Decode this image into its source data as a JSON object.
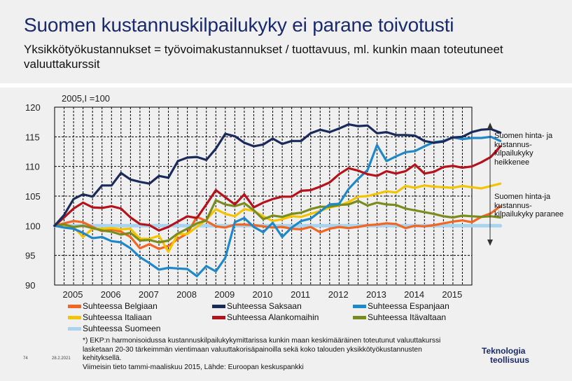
{
  "slide": {
    "title": "Suomen kustannuskilpailukyky ei parane toivotusti",
    "subtitle": "Yksikkötyökustannukset = työvoimakustannukset / tuottavuus, ml. kunkin maan toteutuneet valuuttakurssit",
    "index_label": "2005,I =100",
    "note_up": "Suomen hinta- ja kustannus-kilpailukyky heikkenee",
    "note_down": "Suomen hinta-ja kustannus-kilpailukyky paranee",
    "footnote": [
      "*) EKP:n harmonisoidussa kustannuskilpailukykymittarissa kunkin maan keskimääräinen toteutunut valuuttakurssi",
      "lasketaan 20-30 tärkeimmän vientimaan valuuttakorisäpainoilla sekä koko talouden yksikkötyökustannusten",
      "kehityksellä.",
      "Viimeisin tieto tammi-maaliskuu 2015, Lähde: Euroopan keskuspankki"
    ],
    "page_number": "74",
    "date": "28.2.2021",
    "logo_line1": "Teknologia",
    "logo_line2": "teollisuus"
  },
  "colors": {
    "Belgium": "#f26522",
    "Germany": "#1a2a5a",
    "Spain": "#1f88c8",
    "Italy": "#f5c400",
    "Netherlands": "#b5121b",
    "Austria": "#7a8c1e",
    "Finland": "#a8d4f0"
  },
  "chart_data": {
    "type": "line",
    "title": "Suomen kustannuskilpailukyky ei parane toivotusti",
    "ylabel": "2005,I =100",
    "xlabel": "",
    "ylim": [
      90,
      120
    ],
    "yticks": [
      90,
      95,
      100,
      105,
      110,
      115,
      120
    ],
    "xlim": [
      2005.0,
      2016.0
    ],
    "xticks": [
      "2005",
      "2006",
      "2007",
      "2008",
      "2009",
      "2010",
      "2011",
      "2012",
      "2013",
      "2014",
      "2015"
    ],
    "start": 2005.0,
    "step": 0.25,
    "series": [
      {
        "name": "Suhteessa Belgiaan",
        "key": "Belgium",
        "values": [
          100,
          100.4,
          100.8,
          100.6,
          99.8,
          99.1,
          99.4,
          99.0,
          98.1,
          96.2,
          96.9,
          96.1,
          96.6,
          97.8,
          98.7,
          101.5,
          100.8,
          99.9,
          99.7,
          100.2,
          100.2,
          100.1,
          99.9,
          99.7,
          99.8,
          99.5,
          99.4,
          99.8,
          98.9,
          99.5,
          99.8,
          99.6,
          99.8,
          100.1,
          100.2,
          100.4,
          100.3,
          99.6,
          100.0,
          99.9,
          100.1,
          100.4,
          100.7,
          100.9,
          100.6,
          101.5,
          102.1,
          103.3
        ]
      },
      {
        "name": "Suhteessa Italiaan",
        "key": "Italy",
        "values": [
          100,
          99.9,
          99.8,
          98.1,
          99.5,
          99.5,
          99.6,
          99.4,
          99.5,
          97.8,
          97.8,
          98.3,
          95.6,
          98.6,
          98.6,
          99.8,
          101.0,
          102.8,
          102.0,
          101.6,
          102.8,
          102.5,
          101.6,
          100.8,
          101.1,
          101.6,
          101.5,
          102.0,
          102.5,
          103.1,
          103.4,
          104.0,
          104.9,
          105.0,
          105.4,
          105.8,
          105.6,
          106.7,
          106.4,
          106.8,
          106.6,
          106.5,
          106.4,
          106.7,
          106.5,
          106.3,
          106.7,
          107.1
        ]
      },
      {
        "name": "Suhteessa Suomeen",
        "key": "Finland",
        "values": [
          100,
          100,
          100,
          100,
          100,
          100,
          100,
          100,
          100,
          100,
          100,
          100,
          100,
          100,
          100,
          100,
          100,
          100,
          100,
          100,
          100,
          100,
          100,
          100,
          100,
          100,
          100,
          100,
          100,
          100,
          100,
          100,
          100,
          100,
          100,
          100,
          100,
          100,
          100,
          100,
          100,
          100,
          100,
          100,
          100,
          100,
          100,
          100
        ]
      },
      {
        "name": "Suhteessa Saksaan",
        "key": "Germany",
        "values": [
          100,
          101.8,
          104.5,
          105.3,
          104.9,
          106.8,
          106.8,
          108.9,
          107.8,
          107.4,
          107.1,
          108.4,
          108.1,
          110.9,
          111.5,
          111.6,
          111.1,
          113.0,
          115.5,
          115.1,
          114.0,
          113.4,
          113.7,
          114.7,
          113.8,
          114.3,
          114.3,
          115.6,
          116.2,
          115.8,
          116.4,
          117.1,
          116.8,
          116.9,
          115.6,
          115.8,
          115.3,
          115.3,
          115.2,
          114.3,
          114.0,
          114.2,
          114.9,
          115.0,
          115.8,
          116.2,
          116.3,
          115.7
        ]
      },
      {
        "name": "Suhteessa Alankomaihin",
        "key": "Netherlands",
        "values": [
          100,
          101.4,
          102.9,
          103.9,
          103.1,
          103.0,
          103.3,
          102.9,
          101.4,
          100.3,
          100.1,
          99.2,
          99.8,
          100.7,
          101.6,
          101.3,
          103.6,
          106.0,
          104.8,
          103.6,
          105.3,
          103.1,
          103.9,
          104.5,
          104.9,
          104.9,
          105.9,
          106.0,
          106.6,
          107.3,
          108.7,
          109.7,
          109.3,
          108.7,
          108.4,
          109.2,
          108.8,
          109.2,
          110.3,
          108.8,
          109.1,
          109.9,
          110.1,
          109.8,
          110.0,
          110.7,
          111.6,
          113.4
        ]
      },
      {
        "name": "Suhteessa Espanjaan",
        "key": "Spain",
        "values": [
          100,
          99.7,
          99.5,
          98.8,
          97.9,
          98.1,
          97.4,
          97.2,
          96.2,
          94.7,
          93.7,
          92.6,
          92.9,
          92.8,
          92.7,
          91.5,
          93.2,
          92.3,
          94.6,
          100.6,
          101.3,
          99.8,
          98.9,
          100.5,
          98.1,
          99.7,
          100.8,
          101.2,
          102.4,
          103.6,
          103.7,
          106.2,
          107.9,
          109.4,
          113.6,
          110.9,
          111.7,
          112.4,
          112.6,
          113.4,
          114.1,
          114.3,
          114.9,
          114.6,
          114.8,
          114.8,
          115.0,
          114.3
        ]
      },
      {
        "name": "Suhteessa Itävaltaan",
        "key": "Austria",
        "values": [
          100,
          100.2,
          99.8,
          100.0,
          99.6,
          99.2,
          99.0,
          98.5,
          98.8,
          97.5,
          97.6,
          97.2,
          97.5,
          98.7,
          99.5,
          100.4,
          100.9,
          104.3,
          103.6,
          103.3,
          103.8,
          102.6,
          101.1,
          101.7,
          101.5,
          102.0,
          102.2,
          102.8,
          103.2,
          103.2,
          103.5,
          103.6,
          104.2,
          103.4,
          103.9,
          103.6,
          103.5,
          102.9,
          102.6,
          102.3,
          102.0,
          101.6,
          101.4,
          101.7,
          101.6,
          101.5,
          101.6,
          101.4
        ]
      }
    ]
  }
}
